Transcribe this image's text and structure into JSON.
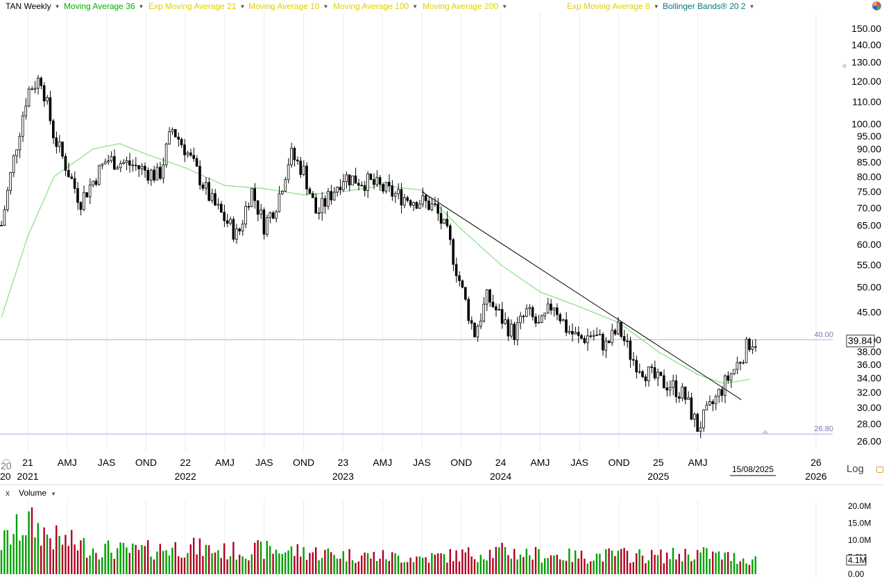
{
  "legend": [
    {
      "label": "TAN Weekly",
      "color": "#000000",
      "name": "legend-tan-weekly"
    },
    {
      "label": "Moving Average 36",
      "color": "#00b000",
      "name": "legend-moving-average-36"
    },
    {
      "label": "Exp Moving Average 21",
      "color": "#e0d000",
      "name": "legend-exp-moving-average-21"
    },
    {
      "label": "Moving Average 10",
      "color": "#e0d000",
      "name": "legend-moving-average-10"
    },
    {
      "label": "Moving Average 100",
      "color": "#e0d000",
      "name": "legend-moving-average-100"
    },
    {
      "label": "Moving Average 200",
      "color": "#e0d000",
      "name": "legend-moving-average-200"
    },
    {
      "label": "Exp Moving Average 8",
      "color": "#e0d000",
      "name": "legend-exp-moving-average-8"
    },
    {
      "label": "Bollinger Bands® 20 2",
      "color": "#007a7a",
      "name": "legend-bollinger-bands"
    }
  ],
  "log_label": "Log",
  "colors": {
    "up": "#00a000",
    "down": "#b00020",
    "ma": "#90e090",
    "hline": "#b8b8e8",
    "trend": "#000000",
    "grid": "#ececf0"
  },
  "chart_data": {
    "type": "candlestick",
    "title": "TAN Weekly",
    "scale": "log",
    "ylim": [
      25.5,
      155
    ],
    "y_ticks": [
      "150.00",
      "140.00",
      "130.00",
      "120.00",
      "110.00",
      "100.00",
      "95.00",
      "90.00",
      "85.00",
      "80.00",
      "75.00",
      "70.00",
      "65.00",
      "60.00",
      "55.00",
      "50.00",
      "45.00",
      "40.00",
      "38.00",
      "36.00",
      "34.00",
      "32.00",
      "30.00",
      "28.00",
      "26.00"
    ],
    "x_ticks": [
      {
        "label": "21",
        "year": "2021",
        "at": "2021-01"
      },
      {
        "label": "AMJ",
        "year": "",
        "at": "2021-04"
      },
      {
        "label": "JAS",
        "year": "",
        "at": "2021-07"
      },
      {
        "label": "OND",
        "year": "",
        "at": "2021-10"
      },
      {
        "label": "22",
        "year": "2022",
        "at": "2022-01"
      },
      {
        "label": "AMJ",
        "year": "",
        "at": "2022-04"
      },
      {
        "label": "JAS",
        "year": "",
        "at": "2022-07"
      },
      {
        "label": "OND",
        "year": "",
        "at": "2022-10"
      },
      {
        "label": "23",
        "year": "2023",
        "at": "2023-01"
      },
      {
        "label": "AMJ",
        "year": "",
        "at": "2023-04"
      },
      {
        "label": "JAS",
        "year": "",
        "at": "2023-07"
      },
      {
        "label": "OND",
        "year": "",
        "at": "2023-10"
      },
      {
        "label": "24",
        "year": "2024",
        "at": "2024-01"
      },
      {
        "label": "AMJ",
        "year": "",
        "at": "2024-04"
      },
      {
        "label": "JAS",
        "year": "",
        "at": "2024-07"
      },
      {
        "label": "OND",
        "year": "",
        "at": "2024-10"
      },
      {
        "label": "25",
        "year": "2025",
        "at": "2025-01"
      },
      {
        "label": "AMJ",
        "year": "",
        "at": "2025-04"
      },
      {
        "label": "26",
        "year": "2026",
        "at": "2026-01"
      }
    ],
    "left_edge_label": "20",
    "left_edge_year": "20",
    "cursor_date": "15/08/2025",
    "last_price": "39.84",
    "hlines": [
      {
        "value": 40.0,
        "label": "40.00"
      },
      {
        "value": 26.8,
        "label": "26.80"
      }
    ],
    "trendline": {
      "from": {
        "date": "2023-07",
        "value": 75.0
      },
      "to": {
        "date": "2025-07",
        "value": 31.0
      }
    },
    "moving_average_36": [
      [
        "2020-11",
        44
      ],
      [
        "2021-01",
        62
      ],
      [
        "2021-03",
        80
      ],
      [
        "2021-06",
        90
      ],
      [
        "2021-08",
        92
      ],
      [
        "2021-10",
        88
      ],
      [
        "2022-01",
        83
      ],
      [
        "2022-04",
        77
      ],
      [
        "2022-07",
        76
      ],
      [
        "2022-10",
        74
      ],
      [
        "2023-01",
        75
      ],
      [
        "2023-04",
        77
      ],
      [
        "2023-07",
        75.5
      ],
      [
        "2023-10",
        64
      ],
      [
        "2024-01",
        55
      ],
      [
        "2024-04",
        49
      ],
      [
        "2024-07",
        46
      ],
      [
        "2024-10",
        43
      ],
      [
        "2025-01",
        38
      ],
      [
        "2025-04",
        34.5
      ],
      [
        "2025-06",
        33.2
      ],
      [
        "2025-08",
        33.8
      ]
    ],
    "price_path": [
      [
        "2020-11",
        65
      ],
      [
        "2020-12",
        88
      ],
      [
        "2021-01",
        115
      ],
      [
        "2021-02",
        122
      ],
      [
        "2021-03",
        95
      ],
      [
        "2021-05",
        72
      ],
      [
        "2021-07",
        86
      ],
      [
        "2021-09",
        84
      ],
      [
        "2021-11",
        80
      ],
      [
        "2021-12",
        98
      ],
      [
        "2022-01",
        90
      ],
      [
        "2022-03",
        72
      ],
      [
        "2022-05",
        62
      ],
      [
        "2022-06",
        76
      ],
      [
        "2022-07",
        65
      ],
      [
        "2022-08",
        72
      ],
      [
        "2022-09",
        88
      ],
      [
        "2022-10",
        82
      ],
      [
        "2022-11",
        68
      ],
      [
        "2023-01",
        80
      ],
      [
        "2023-03",
        78
      ],
      [
        "2023-05",
        74
      ],
      [
        "2023-07",
        72
      ],
      [
        "2023-08",
        70
      ],
      [
        "2023-09",
        62
      ],
      [
        "2023-10",
        50
      ],
      [
        "2023-11",
        41
      ],
      [
        "2023-12",
        48
      ],
      [
        "2024-01",
        44
      ],
      [
        "2024-02",
        41
      ],
      [
        "2024-03",
        45
      ],
      [
        "2024-04",
        42
      ],
      [
        "2024-05",
        47
      ],
      [
        "2024-06",
        42
      ],
      [
        "2024-07",
        40
      ],
      [
        "2024-08",
        41
      ],
      [
        "2024-09",
        39
      ],
      [
        "2024-10",
        42
      ],
      [
        "2024-11",
        37
      ],
      [
        "2024-12",
        35
      ],
      [
        "2025-01",
        33.5
      ],
      [
        "2025-02",
        33
      ],
      [
        "2025-03",
        31.5
      ],
      [
        "2025-04",
        27.5
      ],
      [
        "2025-05",
        30
      ],
      [
        "2025-06",
        33
      ],
      [
        "2025-07",
        36
      ],
      [
        "2025-08",
        39.8
      ]
    ]
  },
  "volume": {
    "title": "Volume",
    "close": "x",
    "last_value": "4.1M",
    "y_ticks": [
      "20.0M",
      "15.0M",
      "10.0M",
      "5.0M",
      "0.00"
    ],
    "ylim": [
      0,
      21
    ],
    "unit": "M shares",
    "profile": [
      [
        "2020-11",
        9.5
      ],
      [
        "2021-01",
        16
      ],
      [
        "2021-03",
        11
      ],
      [
        "2021-06",
        8
      ],
      [
        "2021-09",
        7
      ],
      [
        "2022-01",
        8.5
      ],
      [
        "2022-04",
        7
      ],
      [
        "2022-07",
        7.5
      ],
      [
        "2022-10",
        7
      ],
      [
        "2023-01",
        6
      ],
      [
        "2023-04",
        5.5
      ],
      [
        "2023-07",
        5
      ],
      [
        "2023-10",
        6
      ],
      [
        "2024-01",
        7
      ],
      [
        "2024-04",
        6
      ],
      [
        "2024-07",
        5.5
      ],
      [
        "2024-10",
        6
      ],
      [
        "2025-01",
        5.5
      ],
      [
        "2025-04",
        6.5
      ],
      [
        "2025-06",
        5.5
      ],
      [
        "2025-08",
        4.5
      ]
    ]
  }
}
